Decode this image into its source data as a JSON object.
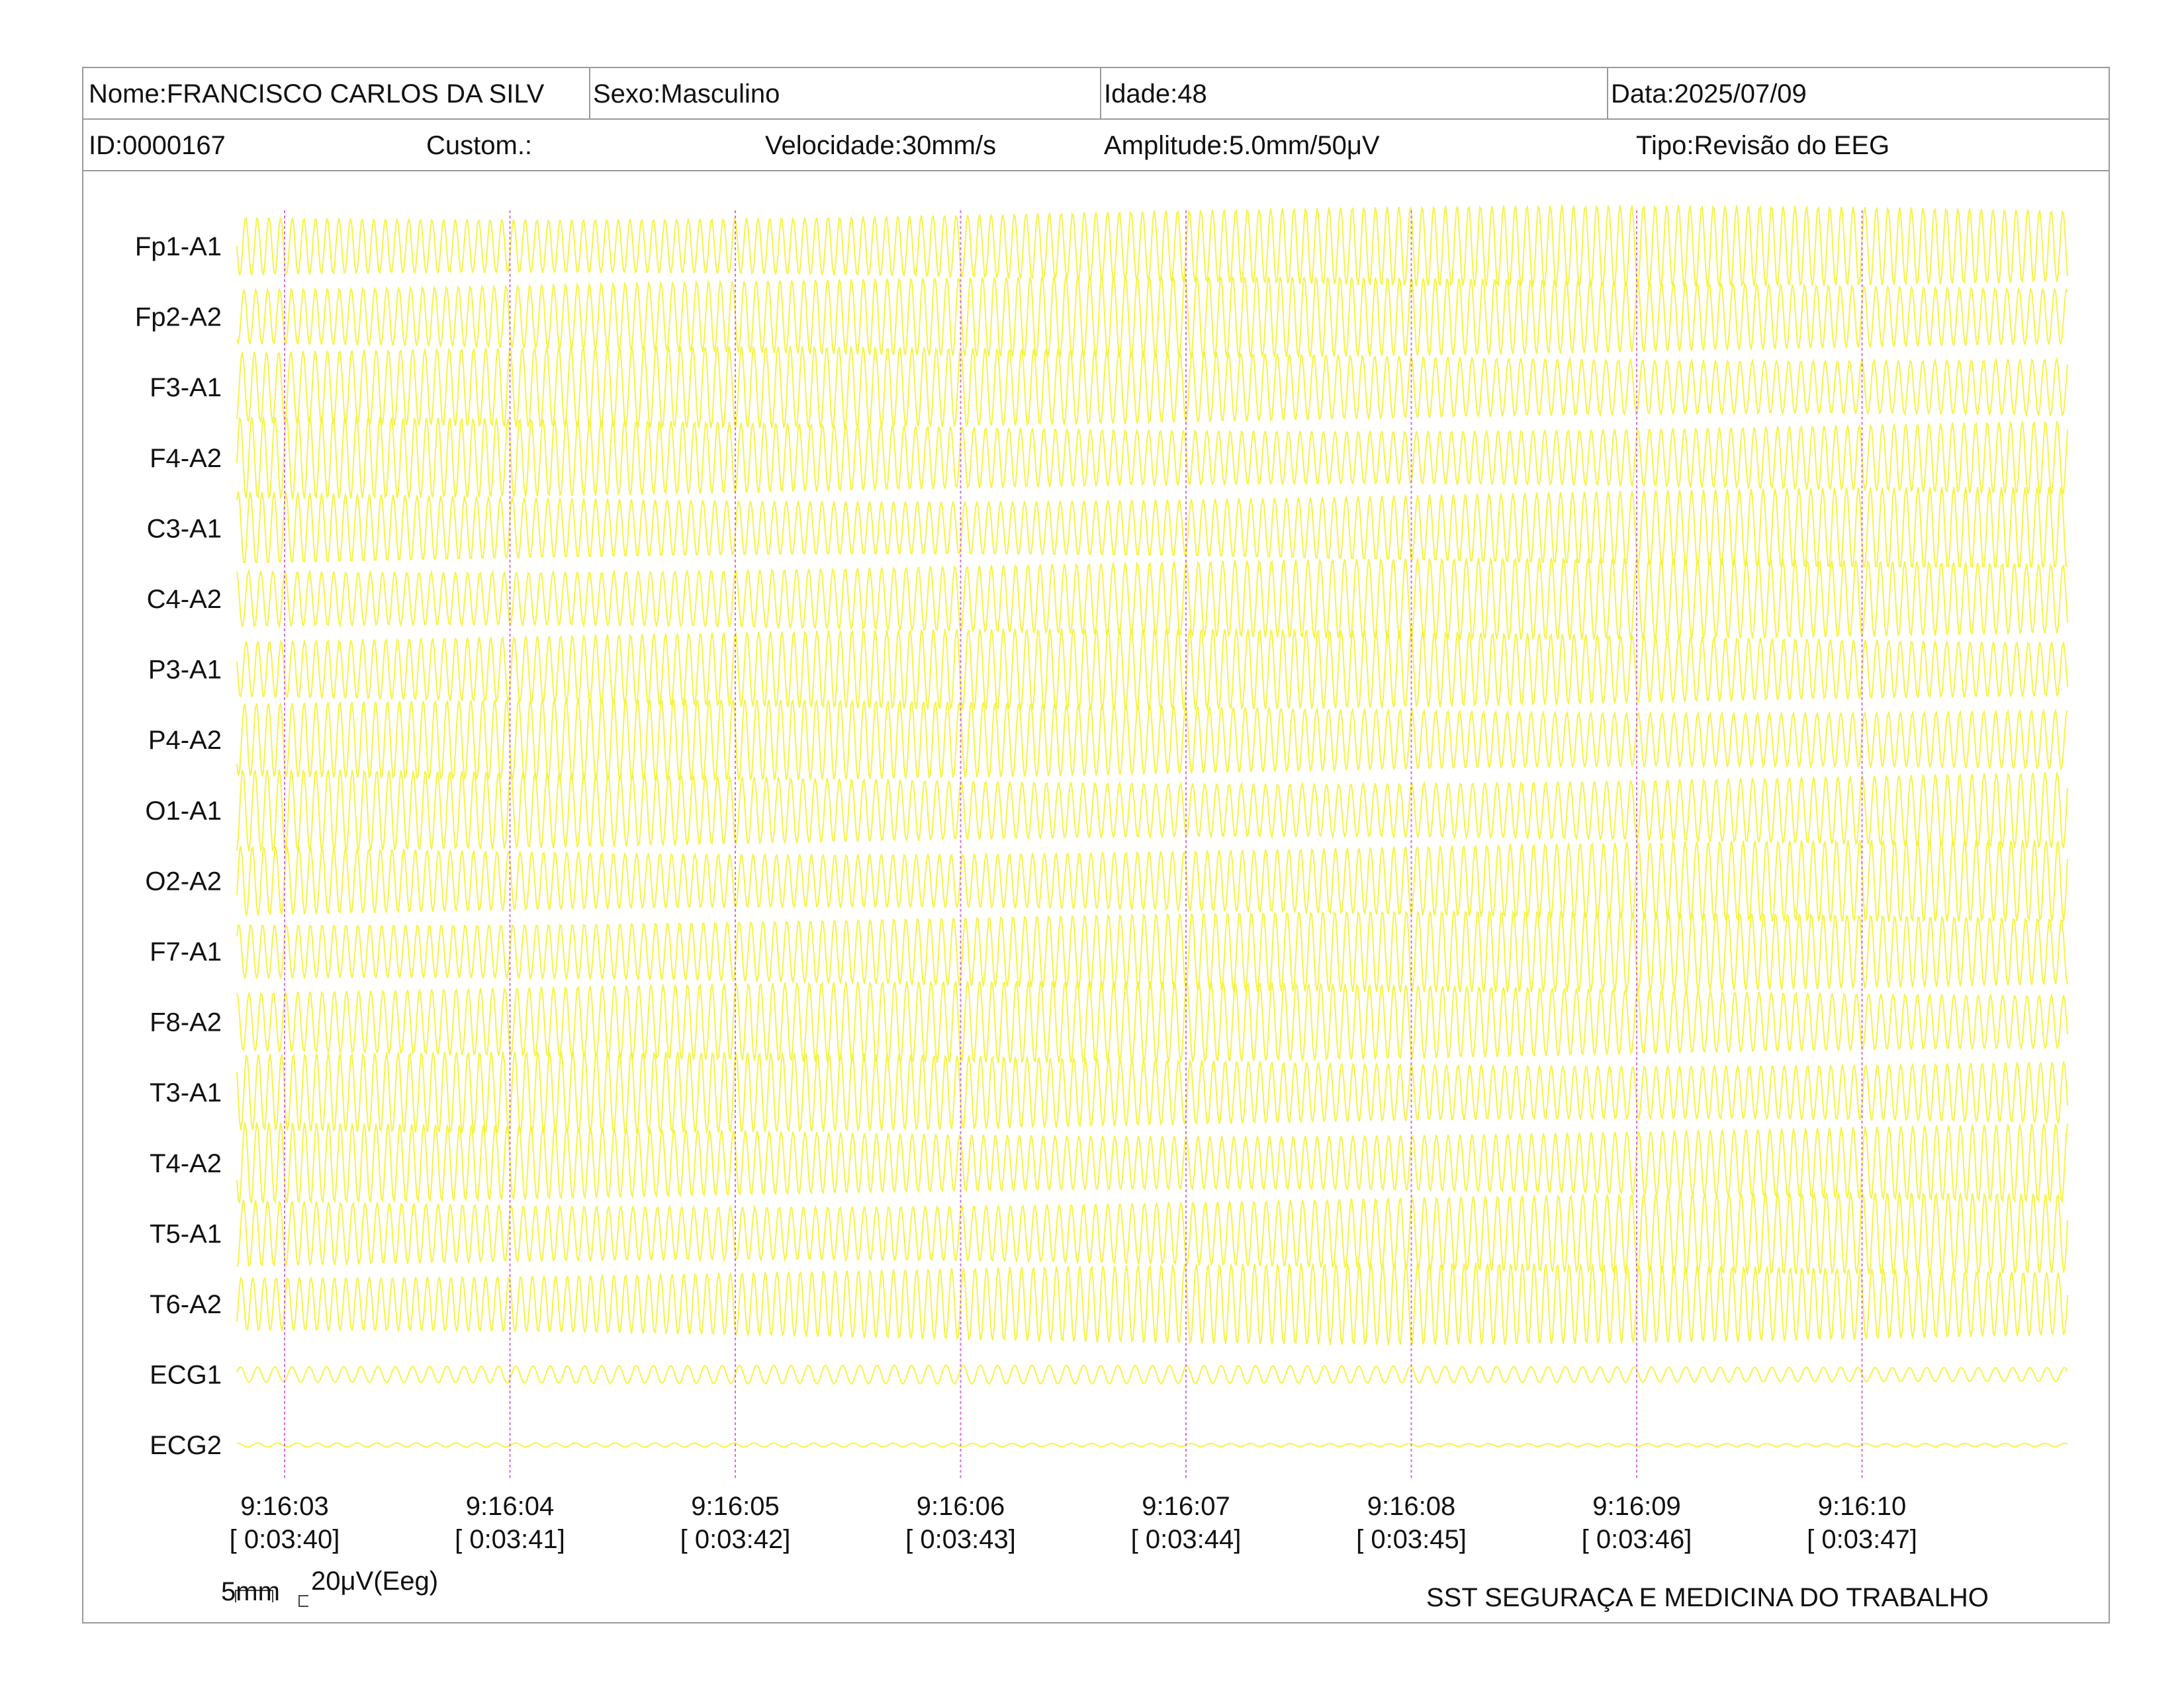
{
  "header": {
    "name": "Nome:FRANCISCO CARLOS DA SILV",
    "sex": "Sexo:Masculino",
    "age": "Idade:48",
    "date": "Data:2025/07/09",
    "id": "ID:0000167",
    "custom": "Custom.:",
    "speed": "Velocidade:30mm/s",
    "amplitude": "Amplitude:5.0mm/50μV",
    "type": "Tipo:Revisão do EEG"
  },
  "footer": {
    "scale_time": "5mm",
    "scale_amp": "20μV(Eeg)",
    "organization": "SST SEGURAÇA E MEDICINA DO TRABALHO"
  },
  "colors": {
    "trace": "#f5f232",
    "time_marker": "#d86ad8",
    "border": "#9a9a9a"
  },
  "chart_data": {
    "type": "line",
    "channels": [
      "Fp1-A1",
      "Fp2-A2",
      "F3-A1",
      "F4-A2",
      "C3-A1",
      "C4-A2",
      "P3-A1",
      "P4-A2",
      "O1-A1",
      "O2-A2",
      "F7-A1",
      "F8-A2",
      "T3-A1",
      "T4-A2",
      "T5-A1",
      "T6-A2",
      "ECG1",
      "ECG2"
    ],
    "time_ticks": [
      {
        "time": "9:16:03",
        "elapsed": "[ 0:03:40]"
      },
      {
        "time": "9:16:04",
        "elapsed": "[ 0:03:41]"
      },
      {
        "time": "9:16:05",
        "elapsed": "[ 0:03:42]"
      },
      {
        "time": "9:16:06",
        "elapsed": "[ 0:03:43]"
      },
      {
        "time": "9:16:07",
        "elapsed": "[ 0:03:44]"
      },
      {
        "time": "9:16:08",
        "elapsed": "[ 0:03:45]"
      },
      {
        "time": "9:16:09",
        "elapsed": "[ 0:03:46]"
      },
      {
        "time": "9:16:10",
        "elapsed": "[ 0:03:47]"
      }
    ],
    "grid": false
  }
}
